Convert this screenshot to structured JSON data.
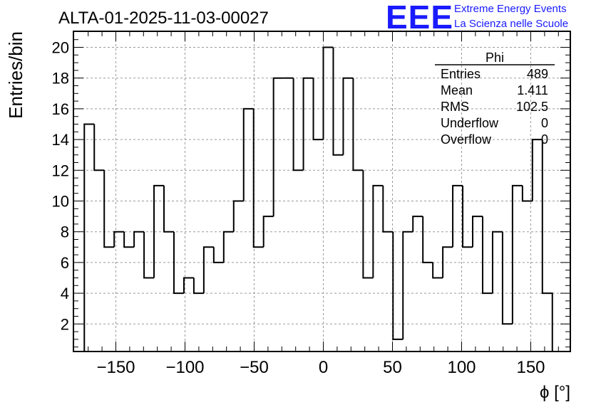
{
  "chart_data": {
    "type": "histogram",
    "title": "ALTA-01-2025-11-03-00027",
    "xlabel": "ϕ [°]",
    "ylabel": "Entries/bin",
    "xlim": [
      -180,
      180
    ],
    "ylim": [
      0,
      21
    ],
    "grid": true,
    "bin_width": 7.2,
    "bin_low_edge": -172.8,
    "bin_contents": [
      15,
      12,
      7,
      8,
      7,
      8,
      5,
      11,
      8,
      4,
      5,
      4,
      7,
      6,
      8,
      10,
      16,
      7,
      9,
      18,
      18,
      12,
      18,
      14,
      20,
      13,
      18,
      12,
      5,
      11,
      8,
      1,
      8,
      9,
      6,
      5,
      7,
      11,
      7,
      9,
      4,
      8,
      2,
      11,
      10,
      14,
      4
    ],
    "x_ticks": [
      -150,
      -100,
      -50,
      0,
      50,
      100,
      150
    ],
    "x_tick_labels": [
      "−150",
      "−100",
      "−50",
      "0",
      "50",
      "100",
      "150"
    ],
    "y_ticks": [
      2,
      4,
      6,
      8,
      10,
      12,
      14,
      16,
      18,
      20
    ],
    "y_tick_labels": [
      "2",
      "4",
      "6",
      "8",
      "10",
      "12",
      "14",
      "16",
      "18",
      "20"
    ],
    "stats_box": {
      "name": "Phi",
      "rows": [
        {
          "label": "Entries",
          "value": "489"
        },
        {
          "label": "Mean",
          "value": "1.411"
        },
        {
          "label": "RMS",
          "value": "102.5"
        },
        {
          "label": "Underflow",
          "value": "0"
        },
        {
          "label": "Overflow",
          "value": "0"
        }
      ]
    },
    "logo": {
      "mark": "EEE",
      "line1": "Extreme Energy Events",
      "line2": "La Scienza nelle Scuole",
      "color": "#1a1aff"
    }
  }
}
